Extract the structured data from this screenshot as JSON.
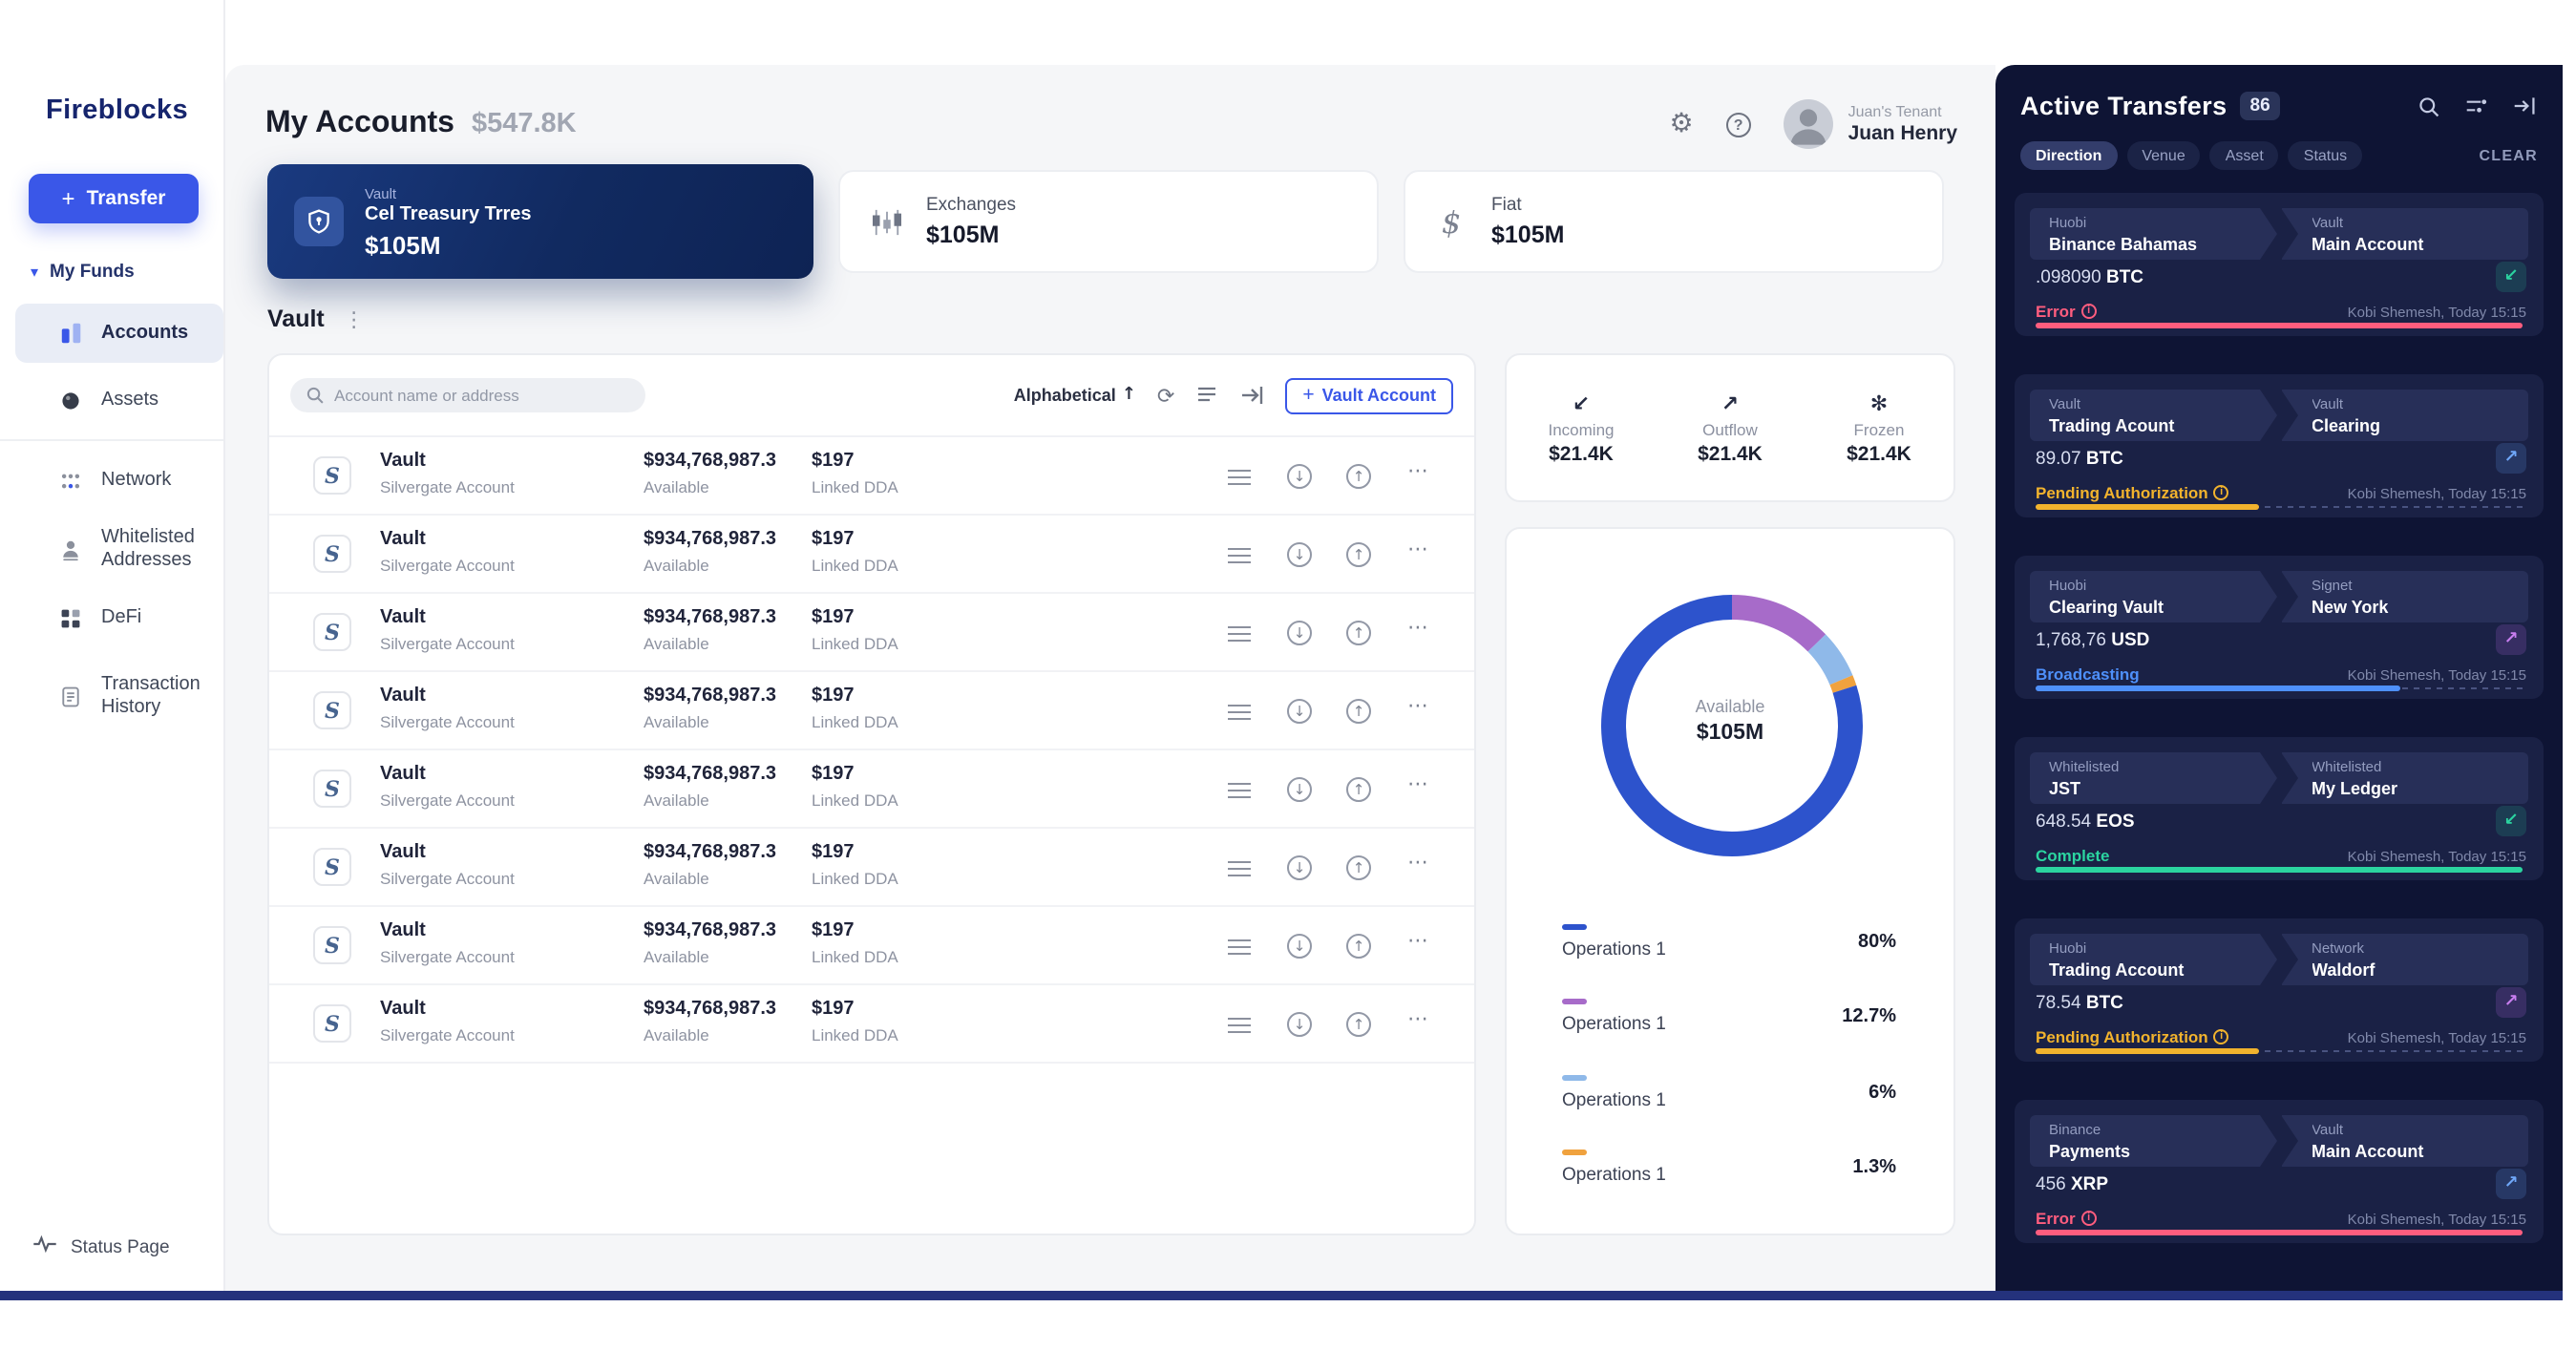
{
  "sidebar": {
    "logo": "Fireblocks",
    "transfer_label": "Transfer",
    "my_funds_label": "My Funds",
    "funds": [
      {
        "label": "Accounts"
      },
      {
        "label": "Assets"
      }
    ],
    "nav": [
      {
        "label": "Network"
      },
      {
        "label": "Whitelisted Addresses"
      },
      {
        "label": "DeFi"
      },
      {
        "label": "Transaction History"
      }
    ],
    "status_page_label": "Status Page"
  },
  "header": {
    "title": "My Accounts",
    "total": "$547.8K",
    "tenant": "Juan's Tenant",
    "user": "Juan Henry"
  },
  "summary_cards": [
    {
      "category": "Vault",
      "name": "Cel Treasury Trres",
      "amount": "$105M"
    },
    {
      "category": "Exchanges",
      "amount": "$105M"
    },
    {
      "category": "Fiat",
      "amount": "$105M"
    }
  ],
  "section_title": "Vault",
  "accounts": {
    "search_placeholder": "Account name or address",
    "sort_label": "Alphabetical",
    "add_button_label": "Vault Account",
    "rows": [
      {
        "name": "Vault",
        "subtitle": "Silvergate Account",
        "balance": "$934,768,987.3",
        "balance_sub": "Available",
        "dda": "$197",
        "dda_sub": "Linked DDA"
      },
      {
        "name": "Vault",
        "subtitle": "Silvergate Account",
        "balance": "$934,768,987.3",
        "balance_sub": "Available",
        "dda": "$197",
        "dda_sub": "Linked DDA"
      },
      {
        "name": "Vault",
        "subtitle": "Silvergate Account",
        "balance": "$934,768,987.3",
        "balance_sub": "Available",
        "dda": "$197",
        "dda_sub": "Linked DDA"
      },
      {
        "name": "Vault",
        "subtitle": "Silvergate Account",
        "balance": "$934,768,987.3",
        "balance_sub": "Available",
        "dda": "$197",
        "dda_sub": "Linked DDA"
      },
      {
        "name": "Vault",
        "subtitle": "Silvergate Account",
        "balance": "$934,768,987.3",
        "balance_sub": "Available",
        "dda": "$197",
        "dda_sub": "Linked DDA"
      },
      {
        "name": "Vault",
        "subtitle": "Silvergate Account",
        "balance": "$934,768,987.3",
        "balance_sub": "Available",
        "dda": "$197",
        "dda_sub": "Linked DDA"
      },
      {
        "name": "Vault",
        "subtitle": "Silvergate Account",
        "balance": "$934,768,987.3",
        "balance_sub": "Available",
        "dda": "$197",
        "dda_sub": "Linked DDA"
      },
      {
        "name": "Vault",
        "subtitle": "Silvergate Account",
        "balance": "$934,768,987.3",
        "balance_sub": "Available",
        "dda": "$197",
        "dda_sub": "Linked DDA"
      }
    ]
  },
  "stats": [
    {
      "label": "Incoming",
      "value": "$21.4K"
    },
    {
      "label": "Outflow",
      "value": "$21.4K"
    },
    {
      "label": "Frozen",
      "value": "$21.4K"
    }
  ],
  "chart_data": {
    "type": "pie",
    "style": "donut",
    "center_label": "Available",
    "center_value": "$105M",
    "legend_position": "below",
    "segments": [
      {
        "label": "Operations 1",
        "value": 80,
        "display": "80%",
        "color": "#2d53cc"
      },
      {
        "label": "Operations 1",
        "value": 12.7,
        "display": "12.7%",
        "color": "#a76bc9"
      },
      {
        "label": "Operations 1",
        "value": 6,
        "display": "6%",
        "color": "#8fb9e9"
      },
      {
        "label": "Operations 1",
        "value": 1.3,
        "display": "1.3%",
        "color": "#f0a23e"
      }
    ]
  },
  "transfers": {
    "title": "Active Transfers",
    "count": "86",
    "filters": [
      "Direction",
      "Venue",
      "Asset",
      "Status"
    ],
    "clear_label": "CLEAR",
    "cards": [
      {
        "src": {
          "label": "Huobi",
          "name": "Binance Bahamas"
        },
        "dst": {
          "label": "Vault",
          "name": "Main Account"
        },
        "amount": ".098090",
        "asset": "BTC",
        "status": {
          "text": "Error",
          "type": "error",
          "info": true
        },
        "progress": 100,
        "icon": "incoming",
        "meta": "Kobi Shemesh, Today 15:15"
      },
      {
        "src": {
          "label": "Vault",
          "name": "Trading Acount"
        },
        "dst": {
          "label": "Vault",
          "name": "Clearing"
        },
        "amount": "89.07",
        "asset": "BTC",
        "status": {
          "text": "Pending Authorization",
          "type": "pending",
          "info": true
        },
        "progress": 46,
        "icon": "chart",
        "meta": "Kobi Shemesh, Today 15:15"
      },
      {
        "src": {
          "label": "Huobi",
          "name": "Clearing Vault"
        },
        "dst": {
          "label": "Signet",
          "name": "New York"
        },
        "amount": "1,768,76",
        "asset": "USD",
        "status": {
          "text": "Broadcasting",
          "type": "broadcasting",
          "info": false
        },
        "progress": 75,
        "icon": "outgoing",
        "meta": "Kobi Shemesh, Today 15:15"
      },
      {
        "src": {
          "label": "Whitelisted",
          "name": "JST"
        },
        "dst": {
          "label": "Whitelisted",
          "name": "My Ledger"
        },
        "amount": "648.54",
        "asset": "EOS",
        "status": {
          "text": "Complete",
          "type": "complete",
          "info": false
        },
        "progress": 100,
        "icon": "incoming",
        "meta": "Kobi Shemesh, Today 15:15"
      },
      {
        "src": {
          "label": "Huobi",
          "name": "Trading Account"
        },
        "dst": {
          "label": "Network",
          "name": "Waldorf"
        },
        "amount": "78.54",
        "asset": "BTC",
        "status": {
          "text": "Pending Authorization",
          "type": "pending",
          "info": true
        },
        "progress": 46,
        "icon": "outgoing",
        "meta": "Kobi Shemesh, Today 15:15"
      },
      {
        "src": {
          "label": "Binance",
          "name": "Payments"
        },
        "dst": {
          "label": "Vault",
          "name": "Main Account"
        },
        "amount": "456",
        "asset": "XRP",
        "status": {
          "text": "Error",
          "type": "error",
          "info": true
        },
        "progress": 100,
        "icon": "chart",
        "meta": "Kobi Shemesh, Today 15:15"
      }
    ]
  }
}
